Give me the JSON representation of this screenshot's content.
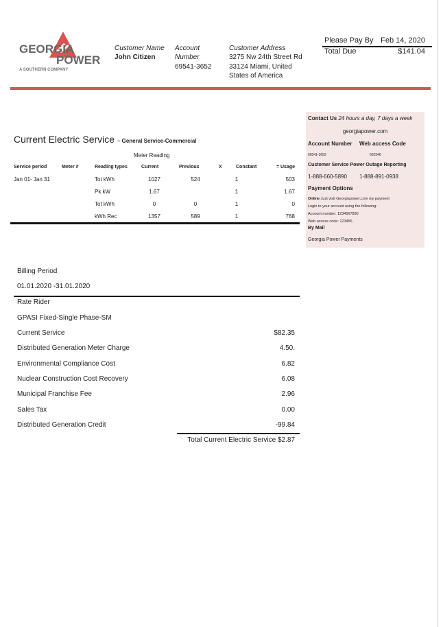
{
  "logo": {
    "line1": "GEORGIA",
    "line2": "POWER",
    "tagline": "A SOUTHERN COMPANY",
    "accent": "#d9534f"
  },
  "header": {
    "customer_name_label": "Customer Name",
    "customer_name": "John Citizen",
    "account_label_1": "Account",
    "account_label_2": "Number",
    "account_number": "69541-3652",
    "address_label": "Customer Address",
    "address_line1": "3275 Nw 24th Street Rd",
    "address_line2": "33124 Miami, United",
    "address_line3": "States of America",
    "pay_by_label": "Please Pay By",
    "pay_by_date": "Feb 14, 2020",
    "total_due_label": "Total Due",
    "total_due": "$141.04"
  },
  "colors": {
    "bar": "#c85a5a",
    "contact_bg": "#f6e7e7"
  },
  "service": {
    "title": "Current Electric Service",
    "subtitle": "– General Service-Commercial",
    "meter_reading": "Meter Reading",
    "headers": [
      "Service period",
      "Meter #",
      "Reading types",
      "Current",
      "Previous",
      "X",
      "Constant",
      "= Usage"
    ],
    "period": "Jan  01- Jan 31",
    "rows": [
      {
        "type": "Tot kWh",
        "current": "1027",
        "previous": "524",
        "constant": "1",
        "usage": "503"
      },
      {
        "type": "Pk kW",
        "current": "1.67",
        "previous": "",
        "constant": "1",
        "usage": "1.67"
      },
      {
        "type": "Tot kWh",
        "current": "0",
        "previous": "0",
        "constant": "1",
        "usage": "0"
      },
      {
        "type": "kWh Rec",
        "current": "1357",
        "previous": "589",
        "constant": "1",
        "usage": "768"
      }
    ]
  },
  "contact": {
    "title": "Contact Us",
    "hours": "24 hours a day, 7 days a week",
    "website": "georgiapower.com",
    "account_label": "Account Number",
    "web_code_label": "Web access Code",
    "account_number": "69541-3652",
    "web_code": "602540",
    "service_label": "Customer Service Power Outage Reporting",
    "phone1": "1-888-660-5890",
    "phone2": "1-888-891-0938",
    "payment_title": "Payment Options",
    "online_label": "Online",
    "online_text": "Just visit Georgiapower.com my payment",
    "login_text": "Login to your account using the following:",
    "acct_text": "Account number: 1234567890",
    "code_text": "Web access code: 123456",
    "mail_label": "By Mail",
    "mail_text": "Georgia Power Payments"
  },
  "billing": {
    "period_label": "Billing Period",
    "period": "01.01.2020 -31.01.2020",
    "rate_rider": "Rate Rider",
    "rate": "GPASI Fixed-Single Phase-SM",
    "items": [
      {
        "label": "Current Service",
        "amount": "$82.35"
      },
      {
        "label": "Distributed Generation Meter Charge",
        "amount": "4.50."
      },
      {
        "label": "Environmental Compliance Cost",
        "amount": "6.82"
      },
      {
        "label": "Nuclear Construction Cost Recovery",
        "amount": "6.08"
      },
      {
        "label": "Municipal Franchise Fee",
        "amount": "2.96"
      },
      {
        "label": "Sales Tax",
        "amount": "0.00"
      },
      {
        "label": "Distributed Generation Credit",
        "amount": "-99.84"
      }
    ],
    "total": "Total Current Electric Service $2.87"
  }
}
